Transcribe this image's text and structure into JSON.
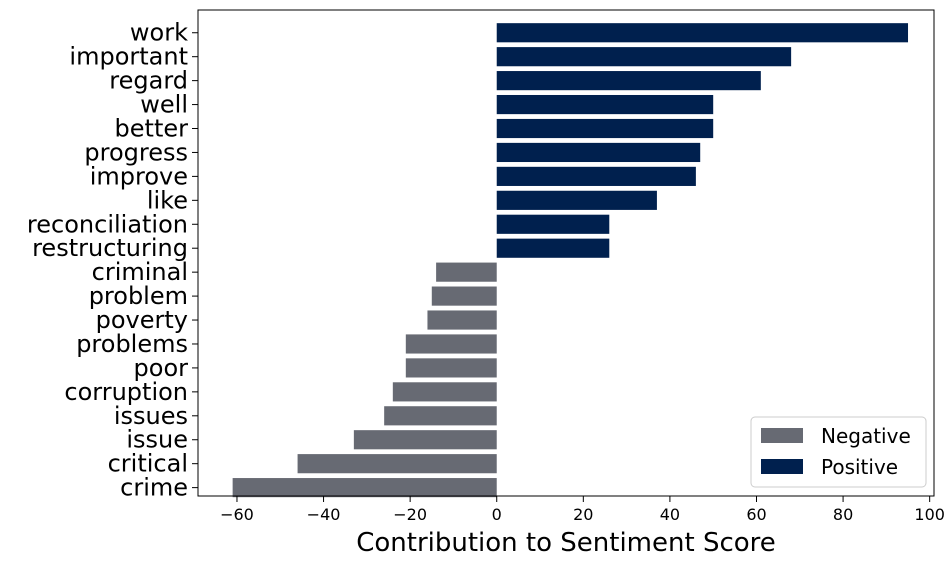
{
  "chart_data": {
    "type": "bar",
    "orientation": "horizontal",
    "xlabel": "Contribution to Sentiment Score",
    "ylabel": "",
    "title": "",
    "xlim": [
      -69,
      101
    ],
    "xticks": [
      -60,
      -40,
      -20,
      0,
      20,
      40,
      60,
      80,
      100
    ],
    "xtick_labels": [
      "−60",
      "−40",
      "−20",
      "0",
      "20",
      "40",
      "60",
      "80",
      "100"
    ],
    "categories": [
      "work",
      "important",
      "regard",
      "well",
      "better",
      "progress",
      "improve",
      "like",
      "reconciliation",
      "restructuring",
      "criminal",
      "problem",
      "poverty",
      "problems",
      "poor",
      "corruption",
      "issues",
      "issue",
      "critical",
      "crime"
    ],
    "values": [
      95,
      68,
      61,
      50,
      50,
      47,
      46,
      37,
      26,
      26,
      -14,
      -15,
      -16,
      -21,
      -21,
      -24,
      -26,
      -33,
      -46,
      -61
    ],
    "series": [
      {
        "name": "Negative",
        "color": "#676a73"
      },
      {
        "name": "Positive",
        "color": "#00204e"
      }
    ],
    "grid": false,
    "legend_position": "lower-right"
  }
}
